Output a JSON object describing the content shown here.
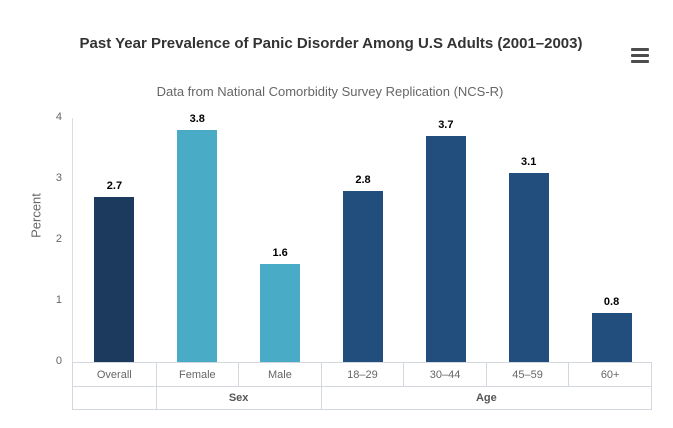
{
  "header": {
    "title": "Past Year Prevalence of Panic Disorder Among U.S Adults (2001–2003)",
    "subtitle": "Data from National Comorbidity Survey Replication (NCS-R)",
    "menu_icon": "hamburger-menu-icon"
  },
  "chart_data": {
    "type": "bar",
    "title": "Past Year Prevalence of Panic Disorder Among U.S Adults (2001–2003)",
    "subtitle": "Data from National Comorbidity Survey Replication (NCS-R)",
    "xlabel": "",
    "ylabel": "Percent",
    "ylim": [
      0,
      4
    ],
    "yticks": [
      0,
      1,
      2,
      3,
      4
    ],
    "grid": false,
    "legend": false,
    "categories": [
      "Overall",
      "Female",
      "Male",
      "18–29",
      "30–44",
      "45–59",
      "60+"
    ],
    "values": [
      2.7,
      3.8,
      1.6,
      2.8,
      3.7,
      3.1,
      0.8
    ],
    "bar_colors": [
      "#1c3a5e",
      "#4aabc6",
      "#4aabc6",
      "#224e7d",
      "#224e7d",
      "#224e7d",
      "#224e7d"
    ],
    "data_label_format": [
      "2.7",
      "3.8",
      "1.6",
      "2.8",
      "3.7",
      "3.1",
      "0.8"
    ],
    "category_groups": [
      {
        "label": "",
        "span": 1
      },
      {
        "label": "Sex",
        "span": 2
      },
      {
        "label": "Age",
        "span": 4
      }
    ],
    "colors": {
      "overall_bar": "#1c3a5e",
      "sex_bars": "#4aabc6",
      "age_bars": "#224e7d",
      "data_label": "#000000",
      "axis_text": "#666666",
      "table_border": "#d3d8de"
    }
  }
}
